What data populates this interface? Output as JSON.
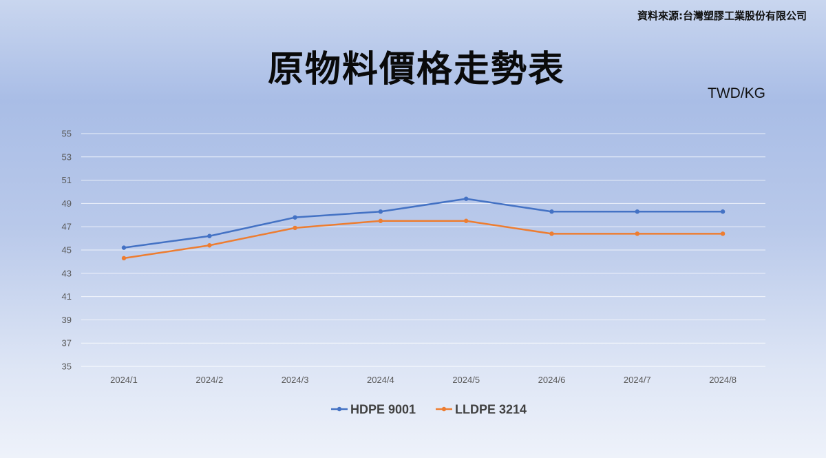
{
  "source_note": "資料來源:台灣塑膠工業股份有限公司",
  "unit_label": "TWD/KG",
  "chart_data": {
    "type": "line",
    "title": "原物料價格走勢表",
    "xlabel": "",
    "ylabel": "",
    "categories": [
      "2024/1",
      "2024/2",
      "2024/3",
      "2024/4",
      "2024/5",
      "2024/6",
      "2024/7",
      "2024/8"
    ],
    "ylim": [
      35,
      55
    ],
    "yticks": [
      35,
      37,
      39,
      41,
      43,
      45,
      47,
      49,
      51,
      53,
      55
    ],
    "grid": true,
    "legend_position": "bottom",
    "series": [
      {
        "name": "HDPE 9001",
        "color": "#4472c4",
        "values": [
          45.2,
          46.2,
          47.8,
          48.3,
          49.4,
          48.3,
          48.3,
          48.3
        ]
      },
      {
        "name": "LLDPE 3214",
        "color": "#ed7d31",
        "values": [
          44.3,
          45.4,
          46.9,
          47.5,
          47.5,
          46.4,
          46.4,
          46.4
        ]
      }
    ]
  }
}
